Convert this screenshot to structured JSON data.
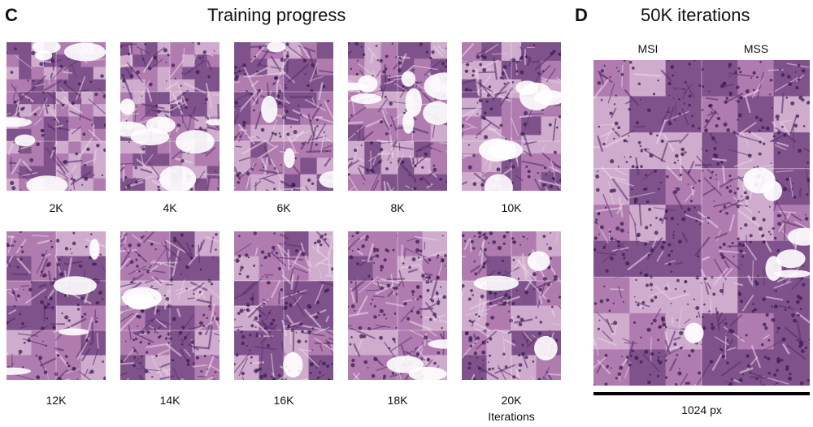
{
  "panel_c": {
    "letter": "C",
    "title": "Training progress",
    "tiles": [
      {
        "label": "2K"
      },
      {
        "label": "4K"
      },
      {
        "label": "6K"
      },
      {
        "label": "8K"
      },
      {
        "label": "10K"
      },
      {
        "label": "12K"
      },
      {
        "label": "14K"
      },
      {
        "label": "16K"
      },
      {
        "label": "18K"
      },
      {
        "label": "20K"
      }
    ],
    "axis_note": "Iterations"
  },
  "panel_d": {
    "letter": "D",
    "title": "50K iterations",
    "col_msi": "MSI",
    "col_mss": "MSS",
    "scale_label": "1024 px"
  },
  "colors": {
    "tissue_base": "#b07cb0",
    "tissue_dark": "#5a2f6e",
    "tissue_light": "#e9d3e6",
    "nuclei": "#3a1d52"
  }
}
